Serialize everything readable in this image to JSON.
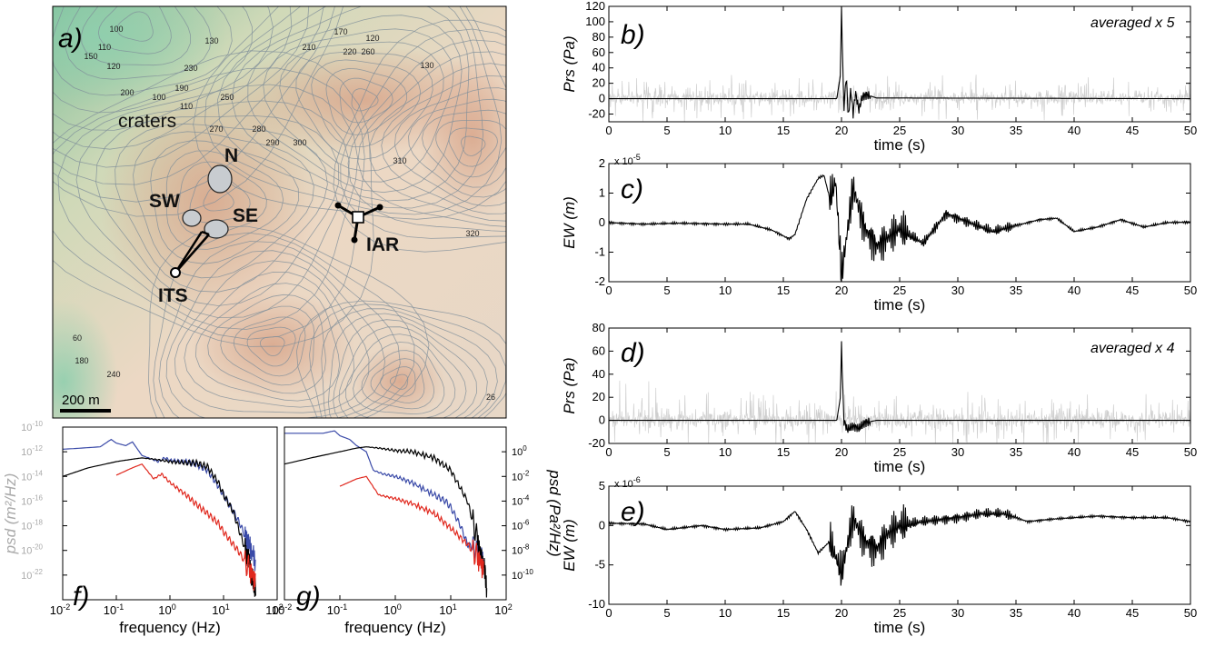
{
  "map": {
    "panel_label": "a)",
    "craters_label": "craters",
    "crater_names": [
      "N",
      "SW",
      "SE"
    ],
    "station_labels": [
      "ITS",
      "IAR"
    ],
    "scale_bar_label": "200 m",
    "contour_labels": [
      "100",
      "110",
      "120",
      "130",
      "150",
      "170",
      "190",
      "200",
      "210",
      "220",
      "230",
      "250",
      "260",
      "270",
      "280",
      "290",
      "300",
      "310",
      "320",
      "26",
      "60",
      "180",
      "240"
    ]
  },
  "chart_data": [
    {
      "id": "b",
      "type": "line",
      "panel_label": "b)",
      "annotation": "averaged x 5",
      "xlabel": "time (s)",
      "ylabel": "Prs (Pa)",
      "xlim": [
        0,
        50
      ],
      "ylim": [
        -30,
        120
      ],
      "xticks": [
        0,
        5,
        10,
        15,
        20,
        25,
        30,
        35,
        40,
        45,
        50
      ],
      "yticks": [
        -20,
        0,
        20,
        40,
        60,
        80,
        100,
        120
      ],
      "series": [
        {
          "style": "black",
          "x": [
            0,
            19.6,
            19.9,
            20.0,
            20.2,
            20.4,
            20.6,
            20.8,
            21.0,
            21.2,
            21.5,
            21.8,
            22.2,
            23,
            50
          ],
          "values": [
            0,
            0,
            30,
            120,
            -15,
            30,
            -25,
            12,
            -20,
            8,
            -15,
            3,
            5,
            1,
            0
          ]
        },
        {
          "style": "grey-noise",
          "amplitude": 45
        }
      ]
    },
    {
      "id": "c",
      "type": "line",
      "panel_label": "c)",
      "exponent": "x 10^-5",
      "xlabel": "time (s)",
      "ylabel": "EW (m)",
      "xlim": [
        0,
        50
      ],
      "ylim": [
        -2,
        2
      ],
      "xticks": [
        0,
        5,
        10,
        15,
        20,
        25,
        30,
        35,
        40,
        45,
        50
      ],
      "yticks": [
        -2,
        -1,
        0,
        1,
        2
      ],
      "series": [
        {
          "style": "black",
          "x": [
            0,
            3,
            6,
            10,
            12,
            14,
            15.5,
            16,
            17,
            18,
            18.5,
            19,
            19.5,
            20,
            21,
            22,
            23,
            25,
            27,
            29,
            31,
            33,
            35,
            37,
            38.5,
            40,
            42,
            44,
            46,
            48,
            50
          ],
          "values": [
            0,
            -0.05,
            -0.02,
            -0.05,
            -0.05,
            -0.25,
            -0.55,
            -0.4,
            0.8,
            1.5,
            1.6,
            0.8,
            1.4,
            -1.8,
            1.2,
            -0.2,
            -0.8,
            -0.2,
            -0.7,
            0.3,
            0.0,
            -0.3,
            -0.1,
            0.1,
            0.15,
            -0.3,
            -0.15,
            0.1,
            -0.15,
            0.0,
            0.02
          ]
        }
      ]
    },
    {
      "id": "d",
      "type": "line",
      "panel_label": "d)",
      "annotation": "averaged x 4",
      "xlabel": "time (s)",
      "ylabel": "Prs (Pa)",
      "xlim": [
        0,
        50
      ],
      "ylim": [
        -20,
        80
      ],
      "xticks": [
        0,
        5,
        10,
        15,
        20,
        25,
        30,
        35,
        40,
        45,
        50
      ],
      "yticks": [
        -20,
        0,
        20,
        40,
        60,
        80
      ],
      "series": [
        {
          "style": "black",
          "x": [
            0,
            19.6,
            19.9,
            20.0,
            20.2,
            20.5,
            21.0,
            21.5,
            22.0,
            23,
            50
          ],
          "values": [
            0,
            0,
            20,
            65,
            0,
            -8,
            -5,
            -7,
            -2,
            0,
            0
          ]
        },
        {
          "style": "grey-noise",
          "amplitude": 40
        }
      ]
    },
    {
      "id": "e",
      "type": "line",
      "panel_label": "e)",
      "exponent": "x 10^-6",
      "xlabel": "time (s)",
      "ylabel": "EW (m)",
      "xlim": [
        0,
        50
      ],
      "ylim": [
        -10,
        5
      ],
      "xticks": [
        0,
        5,
        10,
        15,
        20,
        25,
        30,
        35,
        40,
        45,
        50
      ],
      "yticks": [
        -10,
        -5,
        0,
        5
      ],
      "series": [
        {
          "style": "black",
          "x": [
            0,
            3,
            5,
            8,
            10,
            13,
            15,
            16,
            17,
            18,
            19,
            20,
            21,
            22,
            23,
            24,
            25,
            27,
            30,
            32,
            34,
            36,
            38,
            40,
            42,
            45,
            48,
            50
          ],
          "values": [
            0.3,
            0.2,
            -0.5,
            0.0,
            -0.5,
            -0.3,
            0.5,
            1.8,
            -0.5,
            -3.5,
            -2,
            -6,
            1,
            -2,
            -3,
            -1,
            0,
            0.5,
            1.0,
            1.5,
            1.5,
            0.5,
            0.8,
            1.0,
            1.2,
            1.0,
            1.0,
            0.5
          ]
        }
      ]
    },
    {
      "id": "f",
      "type": "line",
      "panel_label": "f)",
      "xlabel": "frequency (Hz)",
      "ylabel": "psd (m²/Hz)",
      "xscale": "log",
      "yscale": "log",
      "xlim": [
        0.01,
        100
      ],
      "ylim": [
        1e-24,
        1e-10
      ],
      "xtick_labels": [
        "10-2",
        "10-1",
        "100",
        "101",
        "102"
      ],
      "ytick_labels": [
        "10-10",
        "10-12",
        "10-14",
        "10-16",
        "10-18",
        "10-20",
        "10-22"
      ],
      "series": [
        {
          "color": "#3a4aa8",
          "x": [
            0.01,
            0.05,
            0.08,
            0.1,
            0.15,
            0.2,
            0.3,
            0.4,
            0.6,
            0.8,
            1,
            2,
            3,
            5,
            8,
            10,
            15,
            20,
            25,
            30,
            40
          ],
          "values": [
            -11.8,
            -11.6,
            -11.0,
            -11.3,
            -11.5,
            -11.2,
            -12.3,
            -12.5,
            -12.8,
            -12.5,
            -12.7,
            -12.8,
            -13.0,
            -13.5,
            -14.8,
            -15.5,
            -16.8,
            -17.8,
            -18.8,
            -19.5,
            -21.0
          ]
        },
        {
          "color": "#000000",
          "x": [
            0.01,
            0.03,
            0.1,
            0.2,
            0.3,
            0.5,
            1,
            2,
            3,
            5,
            8,
            10,
            15,
            20,
            25,
            30,
            35,
            40
          ],
          "values": [
            -14.0,
            -13.3,
            -12.8,
            -12.6,
            -12.5,
            -12.6,
            -12.8,
            -12.9,
            -12.9,
            -13.2,
            -14.5,
            -15.5,
            -16.8,
            -18.5,
            -19.8,
            -21.0,
            -22.5,
            -23.0
          ]
        },
        {
          "color": "#e0281e",
          "x": [
            0.1,
            0.2,
            0.3,
            0.5,
            0.7,
            1,
            2,
            3,
            5,
            8,
            10,
            15,
            20,
            30,
            40
          ],
          "values": [
            -13.9,
            -13.3,
            -13.0,
            -14.2,
            -13.8,
            -14.5,
            -15.5,
            -16.2,
            -17.0,
            -17.8,
            -18.5,
            -19.5,
            -20.2,
            -21.5,
            -22.5
          ]
        }
      ]
    },
    {
      "id": "g",
      "type": "line",
      "panel_label": "g)",
      "xlabel": "frequency (Hz)",
      "ylabel": "psd (Pa²/Hz)",
      "xscale": "log",
      "yscale": "log",
      "xlim": [
        0.01,
        100
      ],
      "ylim": [
        1e-12,
        100.0
      ],
      "xtick_labels": [
        "10-2",
        "10-1",
        "100",
        "101",
        "102"
      ],
      "ytick_labels": [
        "100",
        "10-2",
        "10-4",
        "10-6",
        "10-8",
        "10-10"
      ],
      "series": [
        {
          "color": "#3a4aa8",
          "x": [
            0.01,
            0.05,
            0.08,
            0.1,
            0.15,
            0.2,
            0.3,
            0.4,
            0.6,
            1,
            2,
            5,
            8,
            10,
            15,
            20,
            30,
            40
          ],
          "values": [
            1.5,
            1.5,
            1.7,
            1.3,
            1.0,
            0.5,
            0.0,
            -1.5,
            -1.8,
            -2.0,
            -2.5,
            -3.5,
            -4.0,
            -4.5,
            -6.0,
            -7.5,
            -8.0,
            -9.0
          ]
        },
        {
          "color": "#000000",
          "x": [
            0.01,
            0.03,
            0.1,
            0.2,
            0.3,
            0.5,
            1,
            2,
            5,
            10,
            20,
            30,
            40,
            45
          ],
          "values": [
            -1.0,
            -0.5,
            0.0,
            0.3,
            0.4,
            0.3,
            0.1,
            0.0,
            -0.5,
            -1.5,
            -4.0,
            -7.0,
            -9.5,
            -11.0
          ]
        },
        {
          "color": "#e0281e",
          "x": [
            0.1,
            0.2,
            0.3,
            0.5,
            1,
            2,
            5,
            10,
            20,
            30,
            40
          ],
          "values": [
            -2.8,
            -2.2,
            -2.0,
            -3.5,
            -3.8,
            -4.2,
            -5.0,
            -6.2,
            -7.5,
            -8.5,
            -9.5
          ]
        }
      ]
    }
  ]
}
